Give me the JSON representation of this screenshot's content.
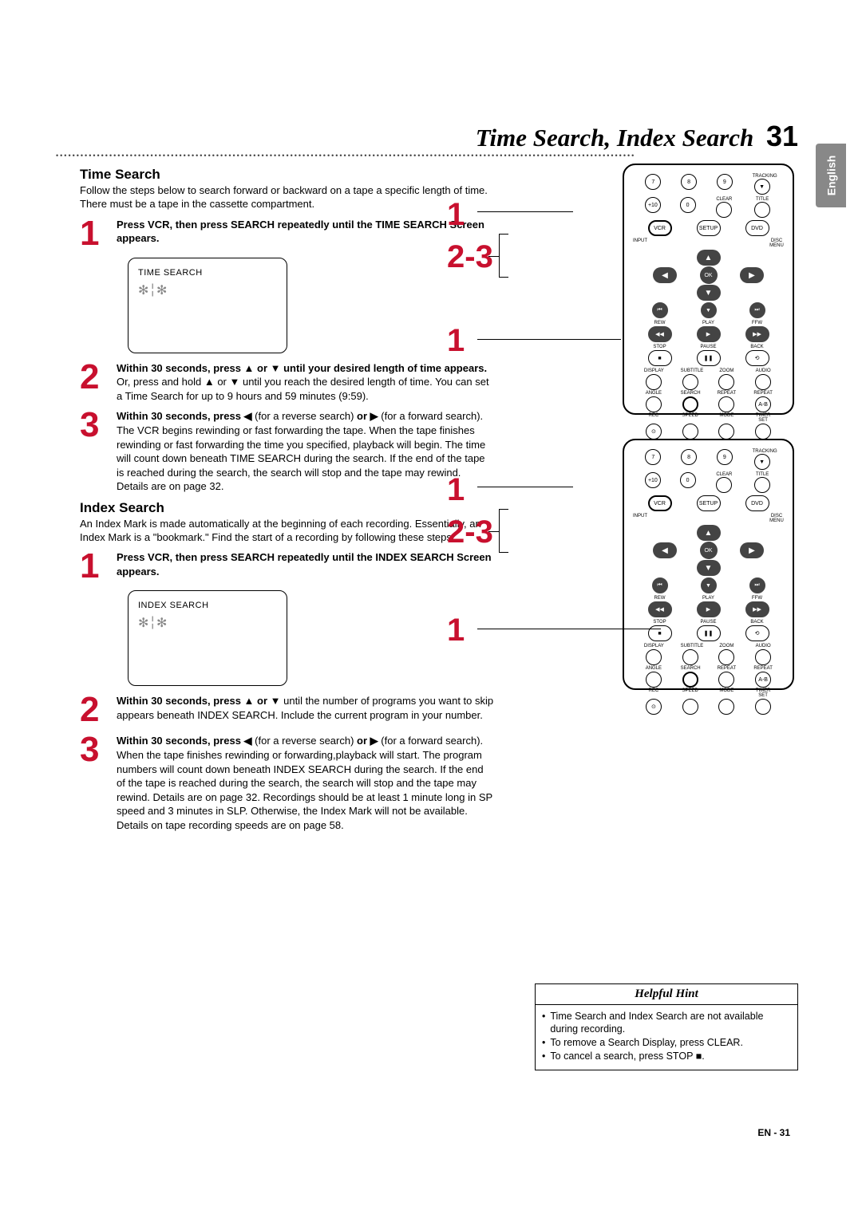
{
  "page": {
    "title": "Time Search, Index Search",
    "title_number": "31",
    "lang_tab": "English",
    "footer": "EN - 31"
  },
  "dots": "•••••••••••••••••••••••••••••••••••••••••••••••••••••••••••••••••••••••••••••••••••••••••••••••••••••••••••••••••••••••••••••••••••••••••••••",
  "time_search": {
    "heading": "Time Search",
    "intro": "Follow the steps below to search forward or backward on a tape a specific length of time. There must be a tape in the cassette compartment.",
    "step1": "Press VCR, then press SEARCH repeatedly until the TIME SEARCH Screen appears.",
    "screen_label": "TIME SEARCH",
    "step2_bold": "Within 30 seconds, press ▲ or ▼ until your desired length of time appears.",
    "step2_rest": " Or, press and hold ▲ or ▼ until you reach the desired length of time. You can set a Time Search for up to 9 hours and 59 minutes (9:59).",
    "step3_lead": "Within 30 seconds, press ◀",
    "step3_mid1": " (for a reverse search) ",
    "step3_or": "or ▶",
    "step3_mid2": " (for a forward search). The VCR begins rewinding or fast forwarding the tape. When the tape finishes rewinding or fast forwarding the time you specified, playback will begin. The time will count down beneath TIME SEARCH during the search. If the end of the tape is reached during the search, the search will stop and the tape may rewind. Details are on page 32."
  },
  "index_search": {
    "heading": "Index Search",
    "intro": "An Index Mark is made automatically at the beginning of each recording. Essentially, an Index Mark is a \"bookmark.\" Find the start of a recording by following these steps.",
    "step1": "Press VCR, then press SEARCH repeatedly until the INDEX SEARCH Screen appears.",
    "screen_label": "INDEX SEARCH",
    "step2_lead": "Within 30 seconds, press ▲ or ▼",
    "step2_rest": " until the number of programs you want to skip appears beneath INDEX SEARCH. Include the current program in your number.",
    "step3_lead": "Within 30 seconds, press ◀",
    "step3_mid1": " (for a reverse search) ",
    "step3_or": "or ▶",
    "step3_mid2": " (for a forward search). When the tape finishes rewinding or forwarding,playback will start. The program numbers will count down beneath INDEX SEARCH during the search. If the end of the tape is reached during the search, the search will stop and the tape may rewind. Details are on page 32. Recordings should be at least 1 minute long in SP speed and 3 minutes in SLP. Otherwise, the Index Mark will not be available. Details on tape recording speeds are on page 58."
  },
  "hint": {
    "heading": "Helpful Hint",
    "items": [
      "Time Search and Index Search are not available during recording.",
      "To remove a Search Display, press CLEAR.",
      "To cancel a search, press STOP ■."
    ]
  },
  "remote": {
    "callouts": {
      "one": "1",
      "twothree": "2-3"
    },
    "row1": [
      "7",
      "8",
      "9"
    ],
    "tracking": "TRACKING",
    "row2": [
      "+10",
      "0"
    ],
    "clear": "CLEAR",
    "title_btn": "TITLE",
    "vcr": "VCR",
    "setup": "SETUP",
    "dvd": "DVD",
    "input": "INPUT",
    "disc": "DISC",
    "menu": "MENU",
    "ok": "OK",
    "rew": "REW",
    "play": "PLAY",
    "ffw": "FFW",
    "stop": "STOP",
    "pause": "PAUSE",
    "back": "BACK",
    "display": "DISPLAY",
    "subtitle": "SUBTITLE",
    "zoom": "ZOOM",
    "audio": "AUDIO",
    "angle": "ANGLE",
    "search": "SEARCH",
    "repeat": "REPEAT",
    "repeat_ab": "REPEAT",
    "ab": "A-B",
    "rec": "REC",
    "speed": "SPEED",
    "mode": "MODE",
    "timer": "TIMER SET"
  }
}
